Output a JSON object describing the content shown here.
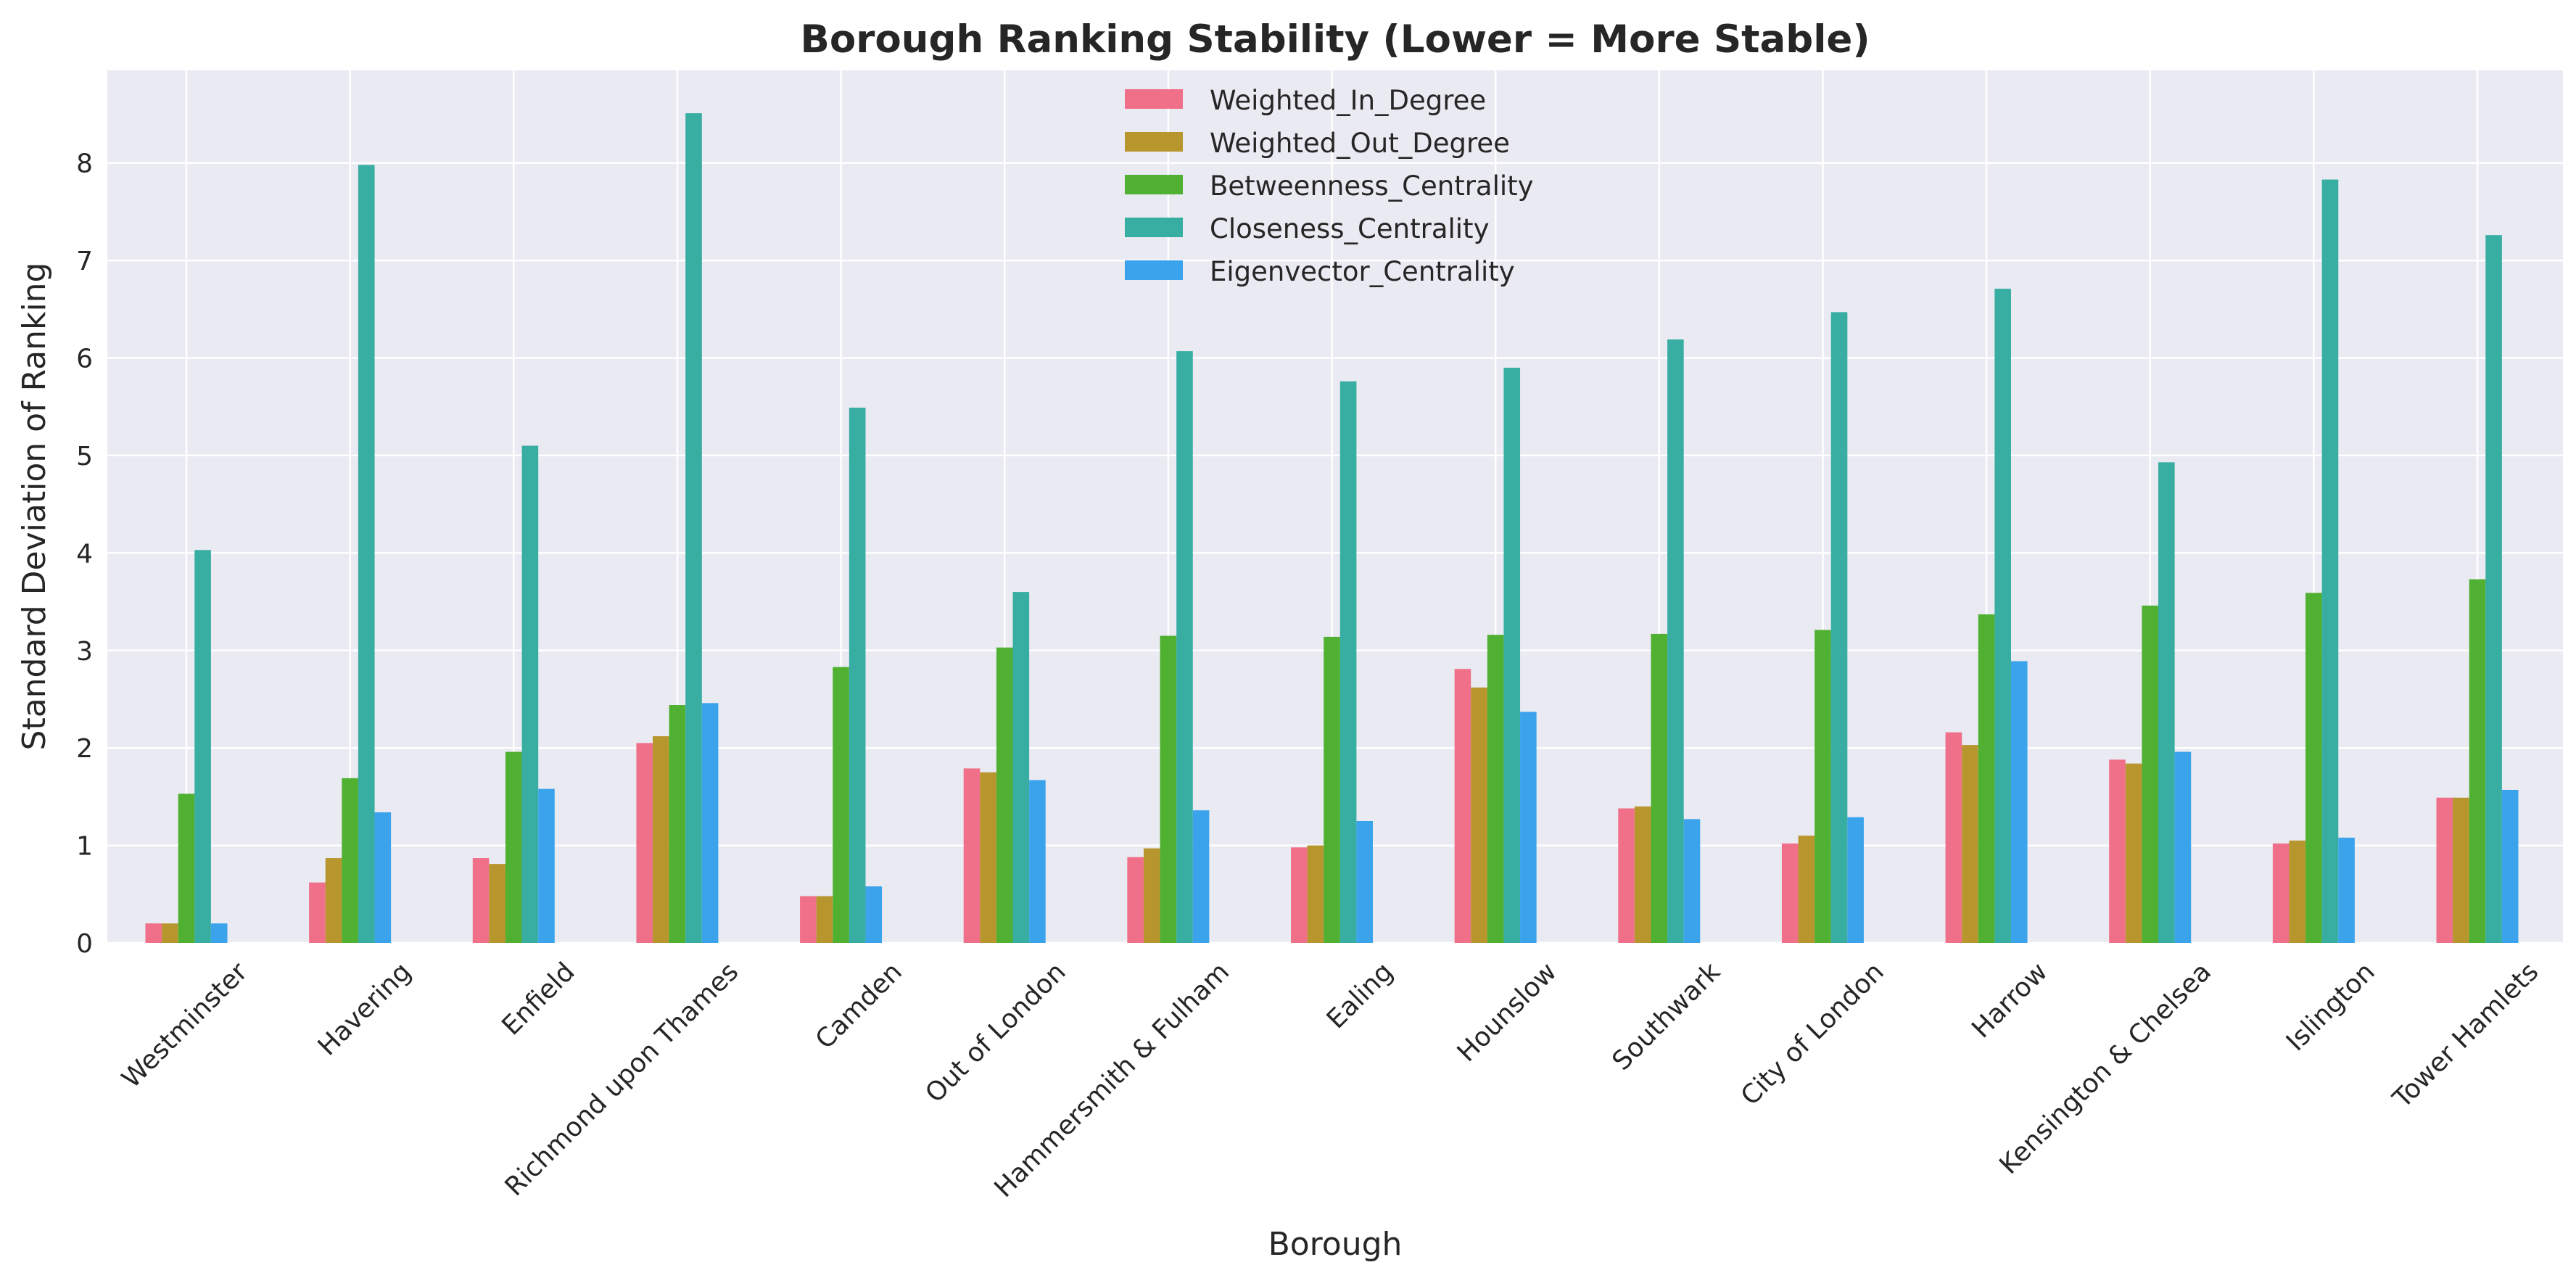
{
  "chart_data": {
    "type": "bar",
    "title": "Borough Ranking Stability (Lower = More Stable)",
    "xlabel": "Borough",
    "ylabel": "Standard Deviation of Ranking",
    "ylim": [
      0,
      8.95
    ],
    "yticks": [
      0,
      1,
      2,
      3,
      4,
      5,
      6,
      7,
      8
    ],
    "grid": true,
    "legend_position": "top-center",
    "categories": [
      "Westminster",
      "Havering",
      "Enfield",
      "Richmond upon Thames",
      "Camden",
      "Out of London",
      "Hammersmith & Fulham",
      "Ealing",
      "Hounslow",
      "Southwark",
      "City of London",
      "Harrow",
      "Kensington & Chelsea",
      "Islington",
      "Tower Hamlets"
    ],
    "series": [
      {
        "name": "Weighted_In_Degree",
        "color": "#f0708a",
        "values": [
          0.2,
          0.62,
          0.87,
          2.05,
          0.48,
          1.79,
          0.88,
          0.98,
          2.81,
          1.38,
          1.02,
          2.16,
          1.88,
          1.02,
          1.49
        ]
      },
      {
        "name": "Weighted_Out_Degree",
        "color": "#b8962e",
        "values": [
          0.2,
          0.87,
          0.81,
          2.12,
          0.48,
          1.75,
          0.97,
          1.0,
          2.62,
          1.4,
          1.1,
          2.03,
          1.84,
          1.05,
          1.49
        ]
      },
      {
        "name": "Betweenness_Centrality",
        "color": "#50b031",
        "values": [
          1.53,
          1.69,
          1.96,
          2.44,
          2.83,
          3.03,
          3.15,
          3.14,
          3.16,
          3.17,
          3.21,
          3.37,
          3.46,
          3.59,
          3.73
        ]
      },
      {
        "name": "Closeness_Centrality",
        "color": "#38ada2",
        "values": [
          4.03,
          7.98,
          5.1,
          8.51,
          5.49,
          3.6,
          6.07,
          5.76,
          5.9,
          6.19,
          6.47,
          6.71,
          4.93,
          7.83,
          7.26
        ]
      },
      {
        "name": "Eigenvector_Centrality",
        "color": "#3ba3ec",
        "values": [
          0.2,
          1.34,
          1.58,
          2.46,
          0.58,
          1.67,
          1.36,
          1.25,
          2.37,
          1.27,
          1.29,
          2.89,
          1.96,
          1.08,
          1.57
        ]
      }
    ]
  }
}
